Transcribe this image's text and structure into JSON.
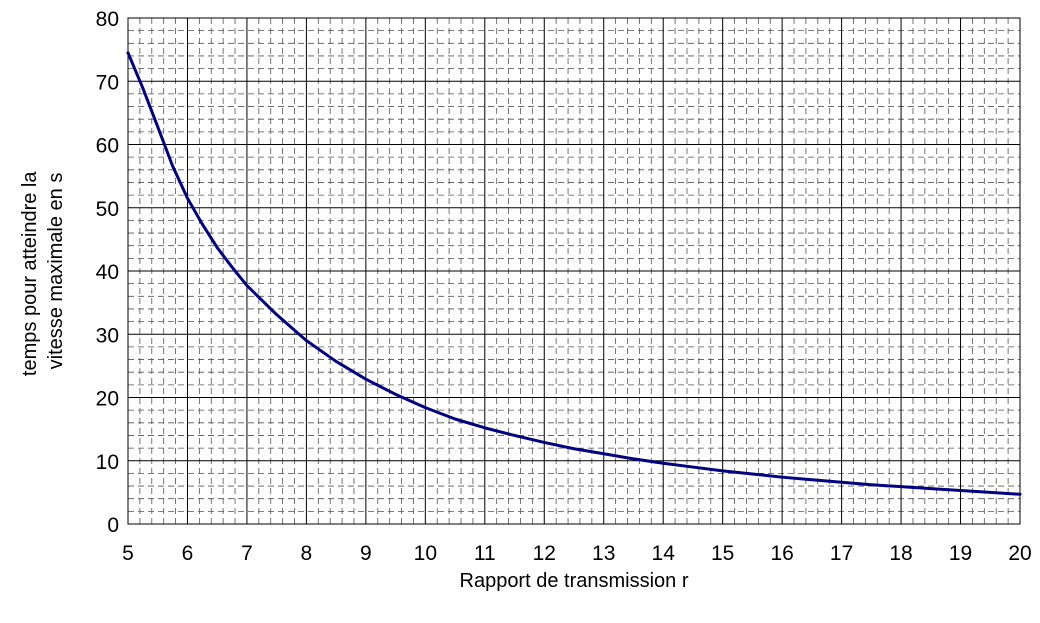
{
  "chart_data": {
    "type": "line",
    "title": "",
    "xlabel": "Rapport de transmission r",
    "ylabel_lines": [
      "temps pour atteindre la",
      "vitesse maximale en s"
    ],
    "xlim": [
      5,
      20
    ],
    "ylim": [
      0,
      80
    ],
    "x_ticks": [
      5,
      6,
      7,
      8,
      9,
      10,
      11,
      12,
      13,
      14,
      15,
      16,
      17,
      18,
      19,
      20
    ],
    "y_ticks": [
      0,
      10,
      20,
      30,
      40,
      50,
      60,
      70,
      80
    ],
    "grid": true,
    "minor_grid": true,
    "legend": "none",
    "series": [
      {
        "color": "#000080",
        "x": [
          5,
          5.25,
          5.5,
          5.75,
          6,
          6.25,
          6.5,
          6.75,
          7,
          7.5,
          8,
          8.5,
          9,
          9.5,
          10,
          10.5,
          11,
          11.5,
          12,
          12.5,
          13,
          13.5,
          14,
          14.5,
          15,
          15.5,
          16,
          16.5,
          17,
          17.5,
          18,
          18.5,
          19,
          19.5,
          20
        ],
        "y": [
          74.5,
          68.9,
          62.8,
          56.6,
          51.5,
          47.4,
          43.7,
          40.6,
          37.7,
          33.1,
          29.0,
          25.7,
          22.9,
          20.5,
          18.4,
          16.6,
          15.2,
          14.0,
          12.9,
          11.9,
          11.1,
          10.3,
          9.6,
          9.0,
          8.4,
          7.9,
          7.4,
          7.0,
          6.6,
          6.2,
          5.9,
          5.6,
          5.3,
          5.0,
          4.7
        ]
      }
    ]
  }
}
